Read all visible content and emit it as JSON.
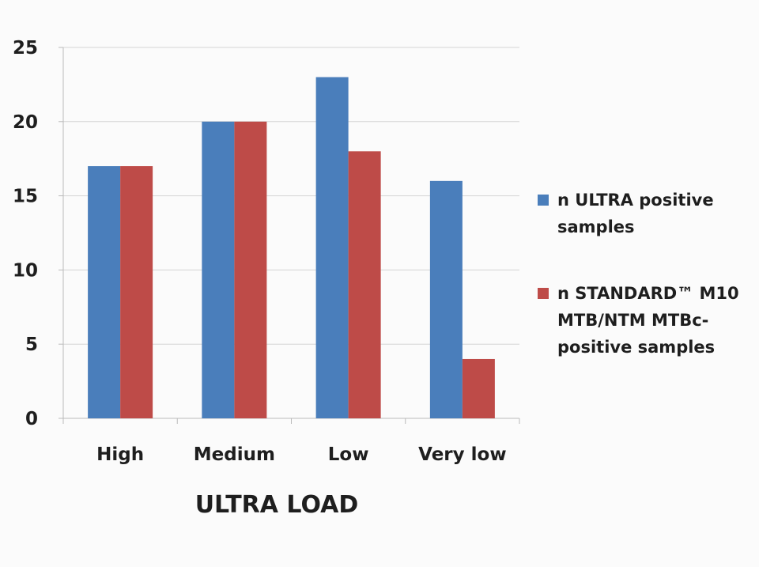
{
  "chart_data": {
    "type": "bar",
    "title": "",
    "xlabel": "ULTRA LOAD",
    "ylabel": "",
    "categories": [
      "High",
      "Medium",
      "Low",
      "Very low"
    ],
    "series": [
      {
        "name": "n ULTRA positive samples",
        "values": [
          17,
          20,
          23,
          16
        ],
        "color": "#4a7ebb"
      },
      {
        "name": "n STANDARD™ M10 MTB/NTM MTBc-positive samples",
        "values": [
          17,
          20,
          18,
          4
        ],
        "color": "#be4b48"
      }
    ],
    "ylim": [
      0,
      25
    ],
    "yticks": [
      "0",
      "5",
      "10",
      "15",
      "20",
      "25"
    ],
    "grid": true,
    "legend_position": "right"
  }
}
